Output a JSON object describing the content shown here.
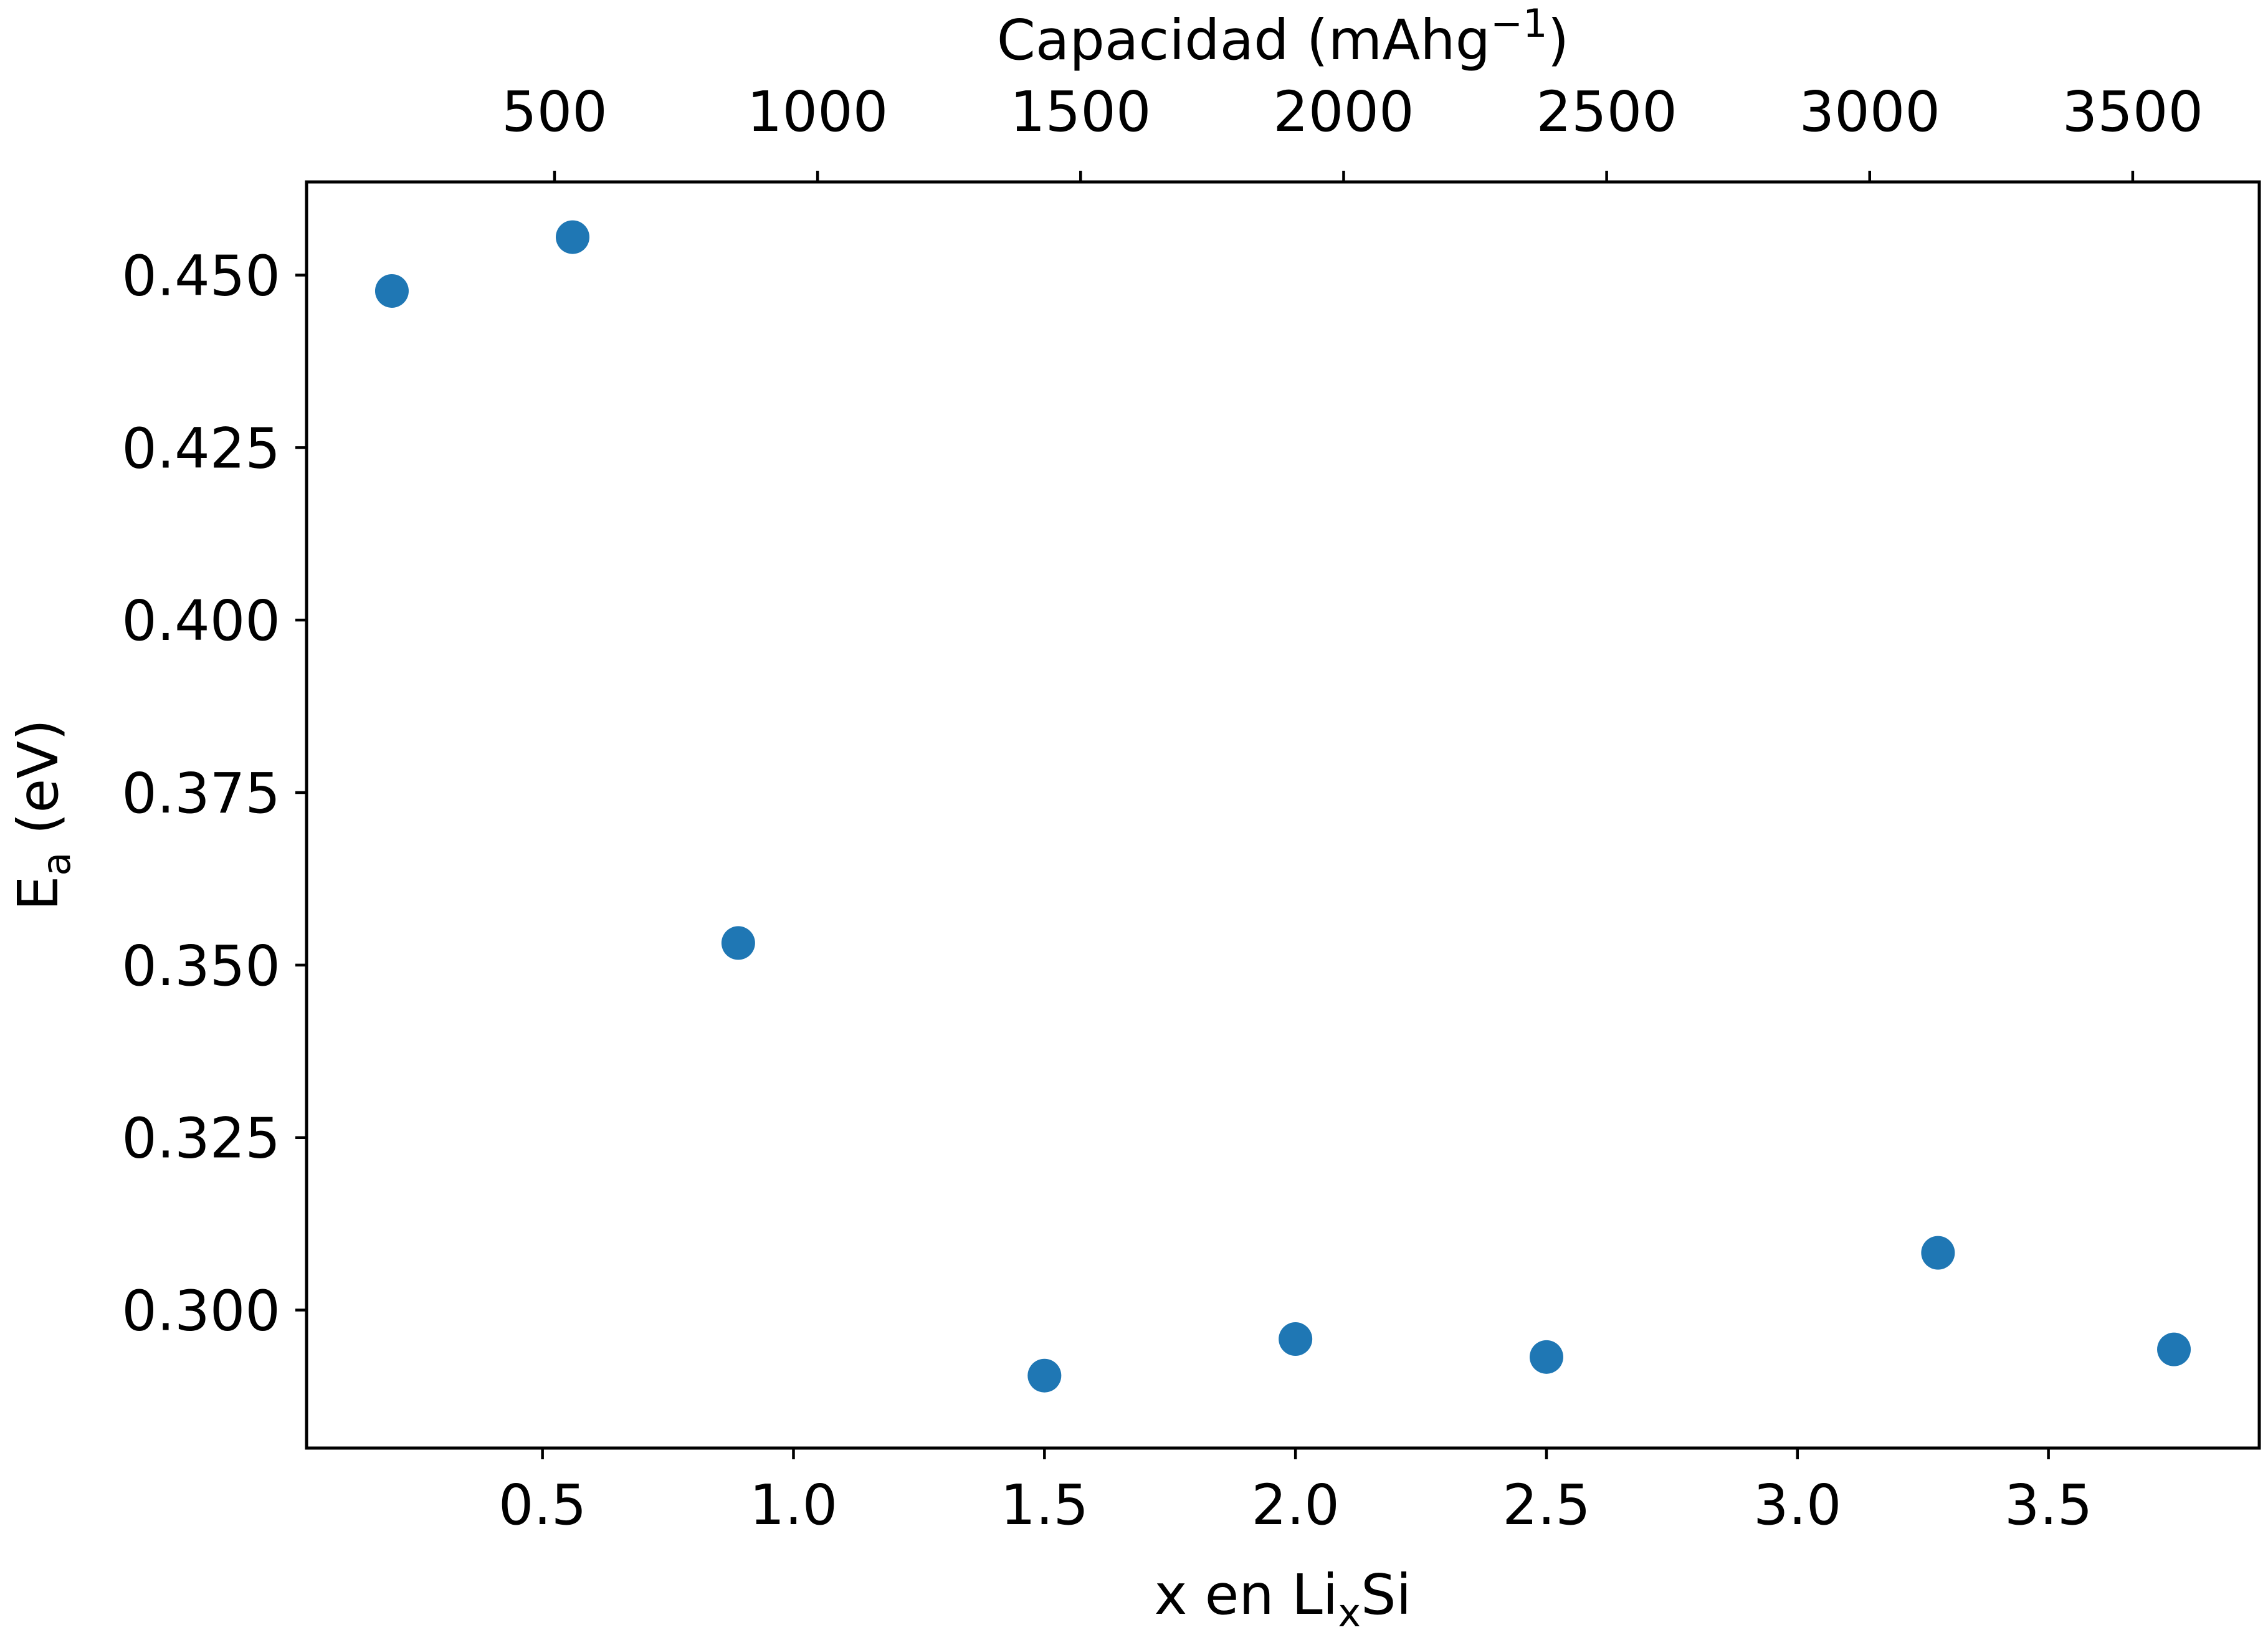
{
  "chart_data": {
    "type": "scatter",
    "title": "",
    "xlabel": {
      "text": "x en Li",
      "subscript": "x",
      "suffix": "Si"
    },
    "ylabel": {
      "text": "E",
      "subscript": "a",
      "suffix": " (eV)"
    },
    "x2label": {
      "text": "Capacidad (mAhg",
      "superscript": "−1",
      "suffix": ")"
    },
    "xlim": [
      0.03,
      3.92
    ],
    "ylim": [
      0.28,
      0.4635
    ],
    "x2_ratio": 954.22,
    "x_ticks": [
      {
        "value": 0.5,
        "label": "0.5"
      },
      {
        "value": 1.0,
        "label": "1.0"
      },
      {
        "value": 1.5,
        "label": "1.5"
      },
      {
        "value": 2.0,
        "label": "2.0"
      },
      {
        "value": 2.5,
        "label": "2.5"
      },
      {
        "value": 3.0,
        "label": "3.0"
      },
      {
        "value": 3.5,
        "label": "3.5"
      }
    ],
    "y_ticks": [
      {
        "value": 0.3,
        "label": "0.300"
      },
      {
        "value": 0.325,
        "label": "0.325"
      },
      {
        "value": 0.35,
        "label": "0.350"
      },
      {
        "value": 0.375,
        "label": "0.375"
      },
      {
        "value": 0.4,
        "label": "0.400"
      },
      {
        "value": 0.425,
        "label": "0.425"
      },
      {
        "value": 0.45,
        "label": "0.450"
      }
    ],
    "x2_ticks": [
      {
        "value": 500,
        "label": "500"
      },
      {
        "value": 1000,
        "label": "1000"
      },
      {
        "value": 1500,
        "label": "1500"
      },
      {
        "value": 2000,
        "label": "2000"
      },
      {
        "value": 2500,
        "label": "2500"
      },
      {
        "value": 3000,
        "label": "3000"
      },
      {
        "value": 3500,
        "label": "3500"
      }
    ],
    "series": [
      {
        "color": "#1f77b4",
        "x": [
          0.2,
          0.56,
          0.89,
          1.5,
          2.0,
          2.5,
          3.28,
          3.75
        ],
        "y": [
          0.4477,
          0.4555,
          0.3532,
          0.2905,
          0.2958,
          0.2932,
          0.3083,
          0.2943
        ]
      }
    ],
    "grid": false,
    "legend": "none"
  }
}
